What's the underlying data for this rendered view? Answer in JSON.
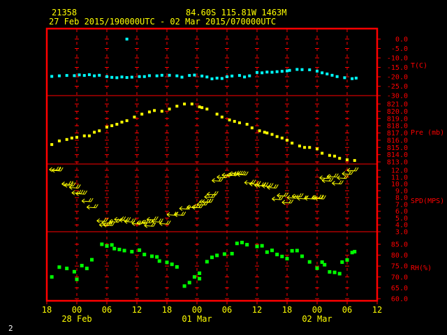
{
  "header": {
    "station": "21358",
    "coords": "84.60S  115.81W  1463M",
    "range": "27 Feb 2015/190000UTC - 02 Mar 2015/070000UTC"
  },
  "footer": {
    "page_number": "2"
  },
  "colors": {
    "frame": "#ff0000",
    "text": "#ffff00",
    "temp": "#00ffff",
    "pressure": "#ffff00",
    "wind": "#ffff00",
    "rh": "#00ff00",
    "page_number": "#ffffff"
  },
  "chart_data": {
    "type": "scatter",
    "x_unit": "hours since 27 Feb 2015 18:00 UTC",
    "xlim": [
      0,
      66
    ],
    "x_tick_labels": [
      {
        "h": 0,
        "label": "18"
      },
      {
        "h": 6,
        "label": "00"
      },
      {
        "h": 12,
        "label": "06"
      },
      {
        "h": 18,
        "label": "12"
      },
      {
        "h": 24,
        "label": "18"
      },
      {
        "h": 30,
        "label": "00"
      },
      {
        "h": 36,
        "label": "06"
      },
      {
        "h": 42,
        "label": "12"
      },
      {
        "h": 48,
        "label": "18"
      },
      {
        "h": 54,
        "label": "00"
      },
      {
        "h": 60,
        "label": "06"
      },
      {
        "h": 66,
        "label": "12"
      }
    ],
    "date_labels": [
      {
        "h": 6,
        "label": "28 Feb"
      },
      {
        "h": 30,
        "label": "01 Mar"
      },
      {
        "h": 54,
        "label": "02 Mar"
      }
    ],
    "panels": [
      {
        "id": "temp",
        "name": "T(C)",
        "ylim": [
          -30,
          0
        ],
        "tick_values": [
          0,
          -5,
          -10,
          -15,
          -20,
          -25,
          -30
        ],
        "tick_labels": [
          "0.0",
          "-5.0",
          "-10.0",
          "-15.0",
          "-20.0",
          "-25.0",
          "-30.0"
        ],
        "points": [
          [
            1,
            -19.8
          ],
          [
            2.5,
            -19.5
          ],
          [
            4,
            -19.3
          ],
          [
            5.5,
            -19.4
          ],
          [
            6.5,
            -19.0
          ],
          [
            7.5,
            -19.3
          ],
          [
            8.5,
            -18.9
          ],
          [
            9.5,
            -19.5
          ],
          [
            10.5,
            -19.2
          ],
          [
            12,
            -19.9
          ],
          [
            13,
            -20.3
          ],
          [
            14,
            -20.5
          ],
          [
            15,
            -20.1
          ],
          [
            16,
            -20.4
          ],
          [
            17,
            -20.2
          ],
          [
            18.5,
            -19.9
          ],
          [
            19.5,
            -19.9
          ],
          [
            20.5,
            -19.4
          ],
          [
            22,
            -19.5
          ],
          [
            23,
            -19.2
          ],
          [
            24.5,
            -19.2
          ],
          [
            26,
            -19.5
          ],
          [
            27,
            -20.2
          ],
          [
            28.5,
            -19.3
          ],
          [
            29.5,
            -19.1
          ],
          [
            31,
            -19.6
          ],
          [
            32,
            -20.1
          ],
          [
            33,
            -21.1
          ],
          [
            34,
            -20.7
          ],
          [
            35,
            -20.9
          ],
          [
            36,
            -20.0
          ],
          [
            37,
            -19.6
          ],
          [
            38.5,
            -19.3
          ],
          [
            39.5,
            -20.1
          ],
          [
            40.5,
            -19.5
          ],
          [
            42,
            -17.7
          ],
          [
            43,
            -17.9
          ],
          [
            44,
            -17.5
          ],
          [
            45,
            -17.6
          ],
          [
            46,
            -17.3
          ],
          [
            47,
            -17.1
          ],
          [
            48,
            -16.9
          ],
          [
            48.5,
            -16.6
          ],
          [
            50,
            -16.1
          ],
          [
            51,
            -16.2
          ],
          [
            52.5,
            -16.3
          ],
          [
            54,
            -17.0
          ],
          [
            55,
            -17.9
          ],
          [
            56,
            -18.5
          ],
          [
            57,
            -19.2
          ],
          [
            58,
            -19.9
          ],
          [
            59.5,
            -20.5
          ],
          [
            61,
            -21.0
          ],
          [
            61.8,
            -20.7
          ]
        ],
        "outliers": [
          [
            16,
            0.0
          ]
        ]
      },
      {
        "id": "pressure",
        "name": "Pre (mb)",
        "ylim": [
          812,
          822
        ],
        "tick_values": [
          821,
          820,
          819,
          818,
          817,
          816,
          815,
          814,
          813
        ],
        "tick_labels": [
          "821.0",
          "820.0",
          "819.0",
          "818.0",
          "817.0",
          "816.0",
          "815.0",
          "814.0",
          "813.0"
        ],
        "points": [
          [
            1,
            815.4
          ],
          [
            2.5,
            815.9
          ],
          [
            4,
            816.1
          ],
          [
            5,
            816.3
          ],
          [
            6,
            816.4
          ],
          [
            7.5,
            816.6
          ],
          [
            8.5,
            816.6
          ],
          [
            9.5,
            817.1
          ],
          [
            10.5,
            817.3
          ],
          [
            12,
            817.8
          ],
          [
            13,
            818.0
          ],
          [
            14,
            818.2
          ],
          [
            15,
            818.5
          ],
          [
            16,
            818.7
          ],
          [
            17.5,
            819.2
          ],
          [
            19,
            819.6
          ],
          [
            20.5,
            819.9
          ],
          [
            21.5,
            820.1
          ],
          [
            23,
            820.0
          ],
          [
            24.5,
            820.3
          ],
          [
            26,
            820.7
          ],
          [
            27.5,
            821.0
          ],
          [
            29,
            821.0
          ],
          [
            30.5,
            820.6
          ],
          [
            31,
            820.5
          ],
          [
            32,
            820.3
          ],
          [
            34,
            819.6
          ],
          [
            35,
            819.2
          ],
          [
            36.5,
            818.8
          ],
          [
            37.5,
            818.6
          ],
          [
            38.5,
            818.4
          ],
          [
            40,
            818.2
          ],
          [
            41,
            817.7
          ],
          [
            42.5,
            817.3
          ],
          [
            43.5,
            817.1
          ],
          [
            44,
            817.0
          ],
          [
            45,
            816.8
          ],
          [
            46,
            816.5
          ],
          [
            47,
            816.3
          ],
          [
            48,
            816.0
          ],
          [
            49,
            815.6
          ],
          [
            50.5,
            815.2
          ],
          [
            51.5,
            815.0
          ],
          [
            52.5,
            815.0
          ],
          [
            54,
            814.8
          ],
          [
            55,
            814.2
          ],
          [
            56.5,
            813.9
          ],
          [
            57.5,
            813.8
          ],
          [
            58.5,
            813.5
          ],
          [
            60,
            813.3
          ],
          [
            61.5,
            813.2
          ]
        ]
      },
      {
        "id": "wind",
        "name": "SPD(MPS)",
        "ylim": [
          3,
          13
        ],
        "tick_values": [
          12,
          11,
          10,
          9,
          8,
          7,
          6,
          5,
          4,
          3
        ],
        "tick_labels": [
          "12.0",
          "11.0",
          "10.0",
          "9.0",
          "8.0",
          "7.0",
          "6.0",
          "5.0",
          "4.0",
          "3.0"
        ],
        "barbs": [
          [
            0.5,
            12.1
          ],
          [
            1,
            12.0
          ],
          [
            3,
            10.0
          ],
          [
            3.5,
            9.8
          ],
          [
            4.5,
            9.5
          ],
          [
            5,
            8.7
          ],
          [
            5.8,
            8.6
          ],
          [
            7,
            7.5
          ],
          [
            8,
            6.6
          ],
          [
            10,
            4.6
          ],
          [
            10.5,
            4.0
          ],
          [
            11,
            4.3
          ],
          [
            11.3,
            4.0
          ],
          [
            12.5,
            4.5
          ],
          [
            13.5,
            4.8
          ],
          [
            14.5,
            4.7
          ],
          [
            15.5,
            4.5
          ],
          [
            17,
            4.2
          ],
          [
            18,
            4.3
          ],
          [
            19,
            4.4
          ],
          [
            19.5,
            3.9
          ],
          [
            20,
            4.8
          ],
          [
            21,
            4.5
          ],
          [
            22.5,
            4.2
          ],
          [
            24,
            5.5
          ],
          [
            25.5,
            5.5
          ],
          [
            26.5,
            6.4
          ],
          [
            28,
            6.6
          ],
          [
            29,
            6.6
          ],
          [
            30,
            7.0
          ],
          [
            30.5,
            7.4
          ],
          [
            31,
            7.4
          ],
          [
            31.5,
            8.1
          ],
          [
            32,
            8.5
          ],
          [
            33,
            10.5
          ],
          [
            34,
            11.0
          ],
          [
            35,
            11.3
          ],
          [
            36,
            11.3
          ],
          [
            36.5,
            11.5
          ],
          [
            37.3,
            11.5
          ],
          [
            38,
            11.4
          ],
          [
            39.5,
            10.2
          ],
          [
            40.5,
            10.0
          ],
          [
            41.5,
            9.8
          ],
          [
            42,
            9.8
          ],
          [
            43,
            9.7
          ],
          [
            44,
            9.5
          ],
          [
            45,
            7.8
          ],
          [
            46,
            8.3
          ],
          [
            47,
            7.3
          ],
          [
            48,
            8.0
          ],
          [
            49,
            8.2
          ],
          [
            50,
            7.9
          ],
          [
            51.5,
            7.9
          ],
          [
            53,
            8.0
          ],
          [
            53.5,
            7.9
          ],
          [
            54.5,
            10.9
          ],
          [
            55,
            10.5
          ],
          [
            56,
            11.1
          ],
          [
            57,
            10.1
          ],
          [
            58,
            10.9
          ],
          [
            59,
            11.5
          ],
          [
            60,
            12.0
          ]
        ]
      },
      {
        "id": "rh",
        "name": "RH(%)",
        "ylim": [
          60,
          88
        ],
        "tick_values": [
          85,
          80,
          75,
          70,
          65,
          60
        ],
        "tick_labels": [
          "85.0",
          "80.0",
          "75.0",
          "70.0",
          "65.0",
          "60.0"
        ],
        "points": [
          [
            1,
            70.0
          ],
          [
            2.5,
            74.5
          ],
          [
            4,
            73.9
          ],
          [
            5.5,
            72.4
          ],
          [
            6,
            68.9
          ],
          [
            7,
            75.2
          ],
          [
            8,
            73.9
          ],
          [
            9,
            77.9
          ],
          [
            11,
            85.0
          ],
          [
            12,
            84.2
          ],
          [
            13,
            84.7
          ],
          [
            13.5,
            83.0
          ],
          [
            14.5,
            82.6
          ],
          [
            15.5,
            82.1
          ],
          [
            17,
            81.6
          ],
          [
            18.5,
            82.3
          ],
          [
            19.5,
            80.3
          ],
          [
            21,
            79.5
          ],
          [
            22,
            79.2
          ],
          [
            22.5,
            77.3
          ],
          [
            24,
            76.7
          ],
          [
            25,
            75.8
          ],
          [
            26,
            74.6
          ],
          [
            27.5,
            65.8
          ],
          [
            28.5,
            67.4
          ],
          [
            29.5,
            70.0
          ],
          [
            30.5,
            71.7
          ],
          [
            30.5,
            69.2
          ],
          [
            32,
            77.0
          ],
          [
            33,
            79.0
          ],
          [
            34,
            79.9
          ],
          [
            35.5,
            80.5
          ],
          [
            37,
            80.7
          ],
          [
            38,
            85.4
          ],
          [
            39,
            85.8
          ],
          [
            40,
            84.8
          ],
          [
            42,
            84.0
          ],
          [
            43,
            84.3
          ],
          [
            44,
            81.4
          ],
          [
            45,
            82.2
          ],
          [
            46,
            80.3
          ],
          [
            47,
            79.4
          ],
          [
            48,
            78.4
          ],
          [
            49,
            82.0
          ],
          [
            50,
            82.1
          ],
          [
            51,
            79.5
          ],
          [
            52.5,
            76.9
          ],
          [
            54,
            74.0
          ],
          [
            55,
            76.8
          ],
          [
            55.5,
            75.6
          ],
          [
            56.5,
            72.3
          ],
          [
            57.5,
            72.1
          ],
          [
            58.5,
            71.5
          ],
          [
            59,
            76.8
          ],
          [
            60,
            77.8
          ],
          [
            61,
            81.2
          ],
          [
            61.5,
            81.6
          ]
        ]
      }
    ]
  }
}
